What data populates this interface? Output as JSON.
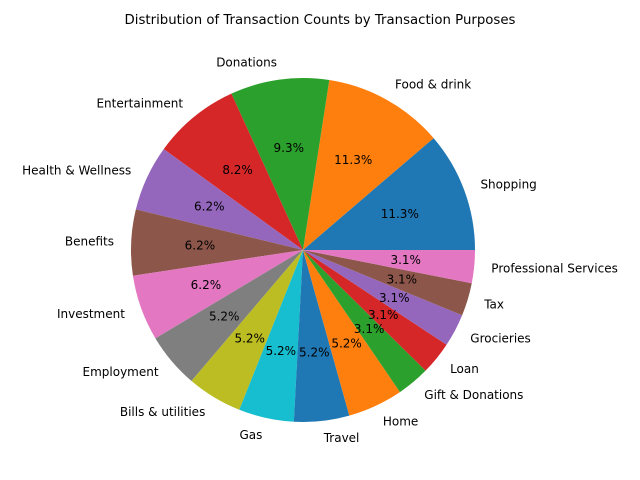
{
  "chart_data": {
    "type": "pie",
    "title": "Distribution of Transaction Counts by Transaction Purposes",
    "start_angle_deg": 0,
    "direction": "counterclockwise",
    "slices": [
      {
        "label": "Shopping",
        "value": 11.3,
        "pct_label": "11.3%",
        "color": "#1f77b4"
      },
      {
        "label": "Food & drink",
        "value": 11.3,
        "pct_label": "11.3%",
        "color": "#ff7f0e"
      },
      {
        "label": "Donations",
        "value": 9.3,
        "pct_label": "9.3%",
        "color": "#2ca02c"
      },
      {
        "label": "Entertainment",
        "value": 8.2,
        "pct_label": "8.2%",
        "color": "#d62728"
      },
      {
        "label": "Health & Wellness",
        "value": 6.2,
        "pct_label": "6.2%",
        "color": "#9467bd"
      },
      {
        "label": "Benefits",
        "value": 6.2,
        "pct_label": "6.2%",
        "color": "#8c564b"
      },
      {
        "label": "Investment",
        "value": 6.2,
        "pct_label": "6.2%",
        "color": "#e377c2"
      },
      {
        "label": "Employment",
        "value": 5.2,
        "pct_label": "5.2%",
        "color": "#7f7f7f"
      },
      {
        "label": "Bills & utilities",
        "value": 5.2,
        "pct_label": "5.2%",
        "color": "#bcbd22"
      },
      {
        "label": "Gas",
        "value": 5.2,
        "pct_label": "5.2%",
        "color": "#17becf"
      },
      {
        "label": "Travel",
        "value": 5.2,
        "pct_label": "5.2%",
        "color": "#1f77b4"
      },
      {
        "label": "Home",
        "value": 5.2,
        "pct_label": "5.2%",
        "color": "#ff7f0e"
      },
      {
        "label": "Gift & Donations",
        "value": 3.1,
        "pct_label": "3.1%",
        "color": "#2ca02c"
      },
      {
        "label": "Loan",
        "value": 3.1,
        "pct_label": "3.1%",
        "color": "#d62728"
      },
      {
        "label": "Grocieries",
        "value": 3.1,
        "pct_label": "3.1%",
        "color": "#9467bd"
      },
      {
        "label": "Tax",
        "value": 3.1,
        "pct_label": "3.1%",
        "color": "#8c564b"
      },
      {
        "label": "Professional Services",
        "value": 3.1,
        "pct_label": "3.1%",
        "color": "#e377c2"
      }
    ]
  }
}
